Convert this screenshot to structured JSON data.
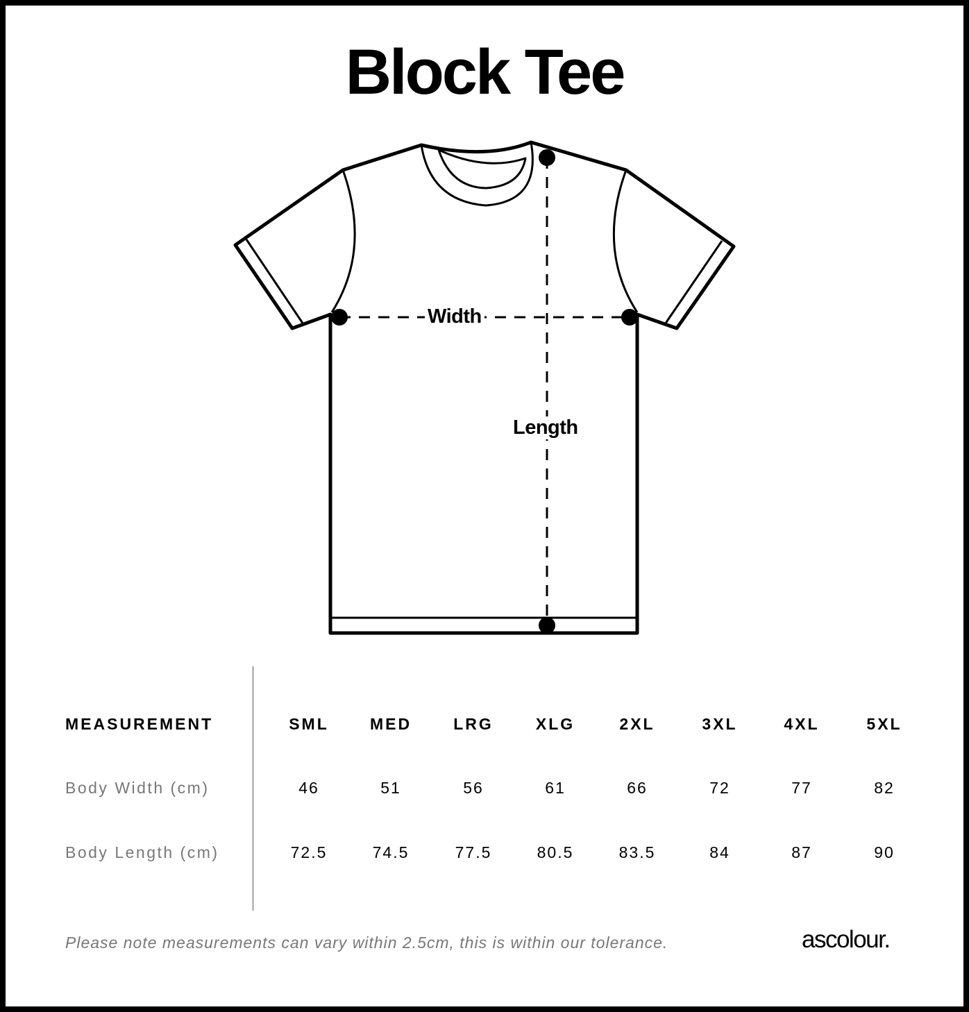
{
  "title": "Block Tee",
  "diagram": {
    "width_label": "Width",
    "length_label": "Length"
  },
  "table": {
    "header": "MEASUREMENT",
    "sizes": [
      "SML",
      "MED",
      "LRG",
      "XLG",
      "2XL",
      "3XL",
      "4XL",
      "5XL"
    ],
    "rows": [
      {
        "label": "Body Width (cm)",
        "values": [
          "46",
          "51",
          "56",
          "61",
          "66",
          "72",
          "77",
          "82"
        ]
      },
      {
        "label": "Body Length (cm)",
        "values": [
          "72.5",
          "74.5",
          "77.5",
          "80.5",
          "83.5",
          "84",
          "87",
          "90"
        ]
      }
    ]
  },
  "footer": {
    "note": "Please note measurements can vary within 2.5cm, this is within our tolerance.",
    "brand": "ascolour."
  }
}
